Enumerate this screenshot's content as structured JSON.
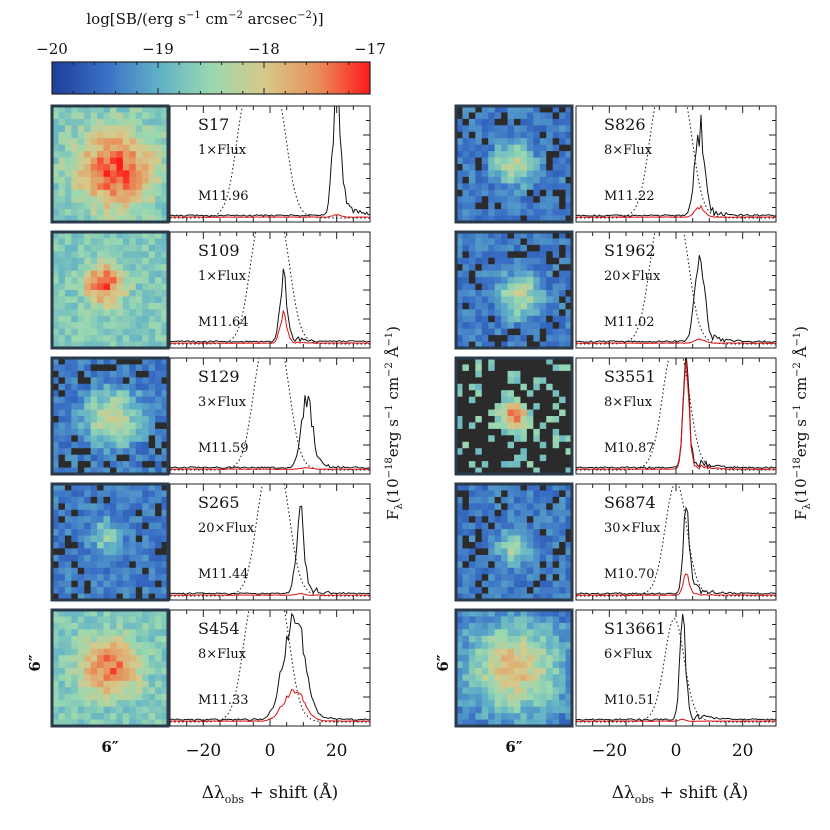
{
  "colorbar": {
    "title_prefix": "log[SB/(erg s",
    "title_exp1": "−1",
    "title_mid1": " cm",
    "title_exp2": "−2",
    "title_mid2": " arcsec",
    "title_exp3": "−2",
    "title_suffix": ")]",
    "ticks": [
      "−20",
      "−19",
      "−18",
      "−17"
    ],
    "min": -20,
    "max": -17,
    "stops": [
      "#1d3f9a",
      "#3a6fc6",
      "#5fb0c8",
      "#9ad8b0",
      "#d7c98a",
      "#e8905a",
      "#ff1a1a"
    ]
  },
  "scale_label": "6″",
  "xaxis_label_prefix": "Δλ",
  "xaxis_label_sub": "obs",
  "xaxis_label_suffix": " + shift (Å)",
  "yaxis_label_prefix": "F",
  "yaxis_label_sub": "λ",
  "yaxis_label_mid": "(10",
  "yaxis_label_exp1": "−18",
  "yaxis_label_mid2": "erg s",
  "yaxis_label_exp2": "−1",
  "yaxis_label_mid3": " cm",
  "yaxis_label_exp3": "−2",
  "yaxis_label_mid4": " Å",
  "yaxis_label_exp4": "−1",
  "yaxis_label_suffix": ")",
  "chart_data": [
    {
      "type": "line",
      "column": "left",
      "id": "S17",
      "scale": "1×Flux",
      "mass": "M11.96",
      "xlim": [
        -30,
        30
      ],
      "xticks": [
        "−20",
        "0",
        "20"
      ],
      "peak": [
        20,
        1.05
      ],
      "width": 1.2,
      "dotted": [
        -10,
        5
      ],
      "red_scale": 0.02,
      "map_level": -17.2,
      "blob": [
        0.55,
        0.55,
        0.35
      ]
    },
    {
      "type": "line",
      "column": "left",
      "id": "S109",
      "scale": "1×Flux",
      "mass": "M11.64",
      "xlim": [
        -30,
        30
      ],
      "xticks": [
        "−20",
        "0",
        "20"
      ],
      "peak": [
        4,
        0.6
      ],
      "width": 1.0,
      "dotted": [
        -6,
        6
      ],
      "red_scale": 0.45,
      "map_level": -17.3,
      "blob": [
        0.45,
        0.45,
        0.2
      ]
    },
    {
      "type": "line",
      "column": "left",
      "id": "S129",
      "scale": "3×Flux",
      "mass": "M11.59",
      "xlim": [
        -30,
        30
      ],
      "xticks": [
        "−20",
        "0",
        "20"
      ],
      "peak": [
        11,
        0.65
      ],
      "width": 1.6,
      "dotted": [
        -5,
        6
      ],
      "red_scale": 0.02,
      "map_level": -18.1,
      "blob": [
        0.52,
        0.52,
        0.28
      ]
    },
    {
      "type": "line",
      "column": "left",
      "id": "S265",
      "scale": "20×Flux",
      "mass": "M11.44",
      "xlim": [
        -30,
        30
      ],
      "xticks": [
        "−20",
        "0",
        "20"
      ],
      "peak": [
        9,
        0.7
      ],
      "width": 1.2,
      "dotted": [
        -4,
        6
      ],
      "red_scale": 0.02,
      "map_level": -18.6,
      "blob": [
        0.47,
        0.45,
        0.22
      ]
    },
    {
      "type": "line",
      "column": "left",
      "id": "S454",
      "scale": "8×Flux",
      "mass": "M11.33",
      "xlim": [
        -30,
        30
      ],
      "xticks": [
        "−20",
        "0",
        "20"
      ],
      "peak": [
        7,
        0.95
      ],
      "width": 3.0,
      "dotted": [
        -8,
        6
      ],
      "red_scale": 0.3,
      "map_level": -17.4,
      "blob": [
        0.5,
        0.5,
        0.3
      ]
    },
    {
      "type": "line",
      "column": "right",
      "id": "S826",
      "scale": "8×Flux",
      "mass": "M11.22",
      "xlim": [
        -30,
        30
      ],
      "xticks": [
        "−20",
        "0",
        "20"
      ],
      "peak": [
        7,
        0.75
      ],
      "width": 1.4,
      "dotted": [
        -8,
        5
      ],
      "red_scale": 0.12,
      "map_level": -18.2,
      "blob": [
        0.5,
        0.5,
        0.22
      ]
    },
    {
      "type": "line",
      "column": "right",
      "id": "S1962",
      "scale": "20×Flux",
      "mass": "M11.02",
      "xlim": [
        -30,
        30
      ],
      "xticks": [
        "−20",
        "0",
        "20"
      ],
      "peak": [
        7,
        0.75
      ],
      "width": 1.4,
      "dotted": [
        -8,
        4
      ],
      "red_scale": 0.05,
      "map_level": -18.3,
      "blob": [
        0.55,
        0.55,
        0.25
      ]
    },
    {
      "type": "line",
      "column": "right",
      "id": "S3551",
      "scale": "8×Flux",
      "mass": "M10.87",
      "xlim": [
        -30,
        30
      ],
      "xticks": [
        "−20",
        "0",
        "20"
      ],
      "peak": [
        3,
        0.95
      ],
      "width": 0.9,
      "dotted": [
        -4,
        4
      ],
      "red_scale": 0.95,
      "map_level": -17.5,
      "blob": [
        0.5,
        0.5,
        0.14
      ]
    },
    {
      "type": "line",
      "column": "right",
      "id": "S6874",
      "scale": "30×Flux",
      "mass": "M10.70",
      "xlim": [
        -30,
        30
      ],
      "xticks": [
        "−20",
        "0",
        "20"
      ],
      "peak": [
        3,
        0.75
      ],
      "width": 0.9,
      "dotted": [
        -3,
        3
      ],
      "red_scale": 0.25,
      "map_level": -18.4,
      "blob": [
        0.5,
        0.55,
        0.18
      ]
    },
    {
      "type": "line",
      "column": "right",
      "id": "S13661",
      "scale": "6×Flux",
      "mass": "M10.51",
      "xlim": [
        -30,
        30
      ],
      "xticks": [
        "−20",
        "0",
        "20"
      ],
      "peak": [
        2,
        0.85
      ],
      "width": 0.9,
      "dotted": [
        -3,
        2
      ],
      "red_scale": 0.02,
      "map_level": -17.9,
      "blob": [
        0.5,
        0.5,
        0.4
      ]
    }
  ]
}
